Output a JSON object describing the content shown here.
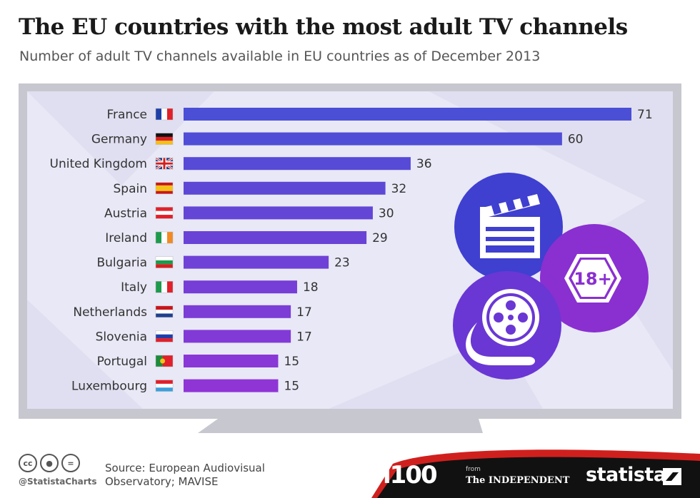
{
  "header": {
    "title": "The EU countries with the most adult TV channels",
    "subtitle": "Number of adult TV channels available in EU countries as of December 2013"
  },
  "chart_data": {
    "type": "bar",
    "orientation": "horizontal",
    "categories": [
      "France",
      "Germany",
      "United Kingdom",
      "Spain",
      "Austria",
      "Ireland",
      "Bulgaria",
      "Italy",
      "Netherlands",
      "Slovenia",
      "Portugal",
      "Luxembourg"
    ],
    "values": [
      71,
      60,
      36,
      32,
      30,
      29,
      23,
      18,
      17,
      17,
      15,
      15
    ],
    "xlim": [
      0,
      71
    ],
    "grid": false,
    "bar_color_top": "#4a4fd6",
    "bar_color_bottom": "#8f35d6"
  },
  "illustration": {
    "badge_label": "18+",
    "icons": [
      "clapperboard-icon",
      "film-reel-icon",
      "age-restriction-icon"
    ],
    "colors": {
      "blue_circle": "#3f3fd0",
      "purple_circle": "#8a2fd0",
      "tv_frame": "#c7c7cf",
      "screen": "#e8e8f6"
    }
  },
  "footer": {
    "handle": "@StatistaCharts",
    "source": "Source: European Audiovisual Observatory; MAVISE",
    "logo_i100": "i100",
    "from_label": "from",
    "independent_logo": "The INDEPENDENT",
    "statista_logo": "statista",
    "license_icons": [
      "cc-icon",
      "by-icon",
      "nd-icon"
    ],
    "accent_red": "#d0201e",
    "dark_band": "#111111"
  }
}
